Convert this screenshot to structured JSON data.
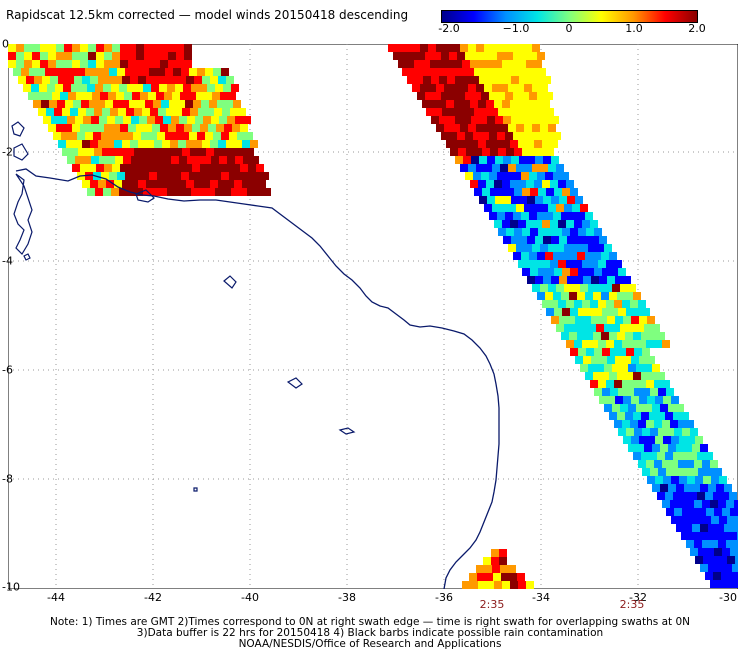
{
  "title": "Rapidscat 12.5km corrected — model winds 20150418 descending",
  "colorbar": {
    "ticks": [
      "-2.0",
      "−1.0",
      "0",
      "1.0",
      "2.0"
    ],
    "colors": [
      "#00008b",
      "#0000ff",
      "#0090ff",
      "#00e5e5",
      "#7fff7f",
      "#ffff00",
      "#ff9900",
      "#ff0000",
      "#8b0000"
    ]
  },
  "axes": {
    "x_ticks": [
      "-44",
      "-42",
      "-40",
      "-38",
      "-36",
      "-34",
      "-32",
      "-30"
    ],
    "y_ticks": [
      "0",
      "-2",
      "-4",
      "-6",
      "-8",
      "-10"
    ]
  },
  "times": [
    "2:35",
    "2:35"
  ],
  "notes": [
    "Note: 1) Times are GMT 2)Times correspond to 0N at right swath edge — time is right swath for overlapping swaths at 0N",
    "3)Data buffer is 22 hrs for 20150418 4) Black barbs indicate possible rain contamination",
    "NOAA/NESDIS/Office of Research and Applications"
  ],
  "colors": {
    "coastline": "#0a1a6b",
    "grid": "#9a9a9a",
    "time_label": "#8b1a1a"
  }
}
